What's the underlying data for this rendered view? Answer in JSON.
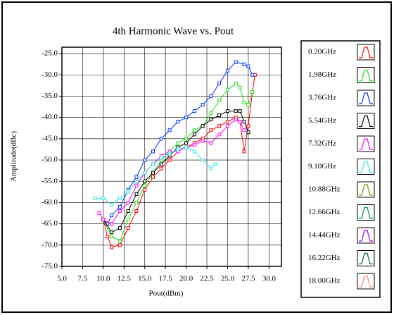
{
  "chart_data": {
    "type": "line",
    "title": "4th Harmonic Wave vs. Pout",
    "x_label": "Pout(dBm)",
    "y_label": "Amplitude(dBc)",
    "xlim": [
      5,
      31.5
    ],
    "ylim": [
      -75,
      -23.5
    ],
    "xticks": [
      {
        "value": 5,
        "label": "5.0"
      },
      {
        "value": 7.5,
        "label": "7.5"
      },
      {
        "value": 10,
        "label": "10.0"
      },
      {
        "value": 12.5,
        "label": "12.5"
      },
      {
        "value": 15,
        "label": "15.0"
      },
      {
        "value": 17.5,
        "label": "17.5"
      },
      {
        "value": 20,
        "label": "20.0"
      },
      {
        "value": 22.5,
        "label": "22.5"
      },
      {
        "value": 25,
        "label": "25.0"
      },
      {
        "value": 27.5,
        "label": "27.5"
      },
      {
        "value": 30,
        "label": "30.0"
      }
    ],
    "yticks": [
      {
        "value": -25,
        "label": "-25.0"
      },
      {
        "value": -30,
        "label": "-30.0"
      },
      {
        "value": -35,
        "label": "-35.0"
      },
      {
        "value": -40,
        "label": "-40.0"
      },
      {
        "value": -45,
        "label": "-45.0"
      },
      {
        "value": -50,
        "label": "-50.0"
      },
      {
        "value": -55,
        "label": "-55.0"
      },
      {
        "value": -60,
        "label": "-60.0"
      },
      {
        "value": -65,
        "label": "-65.0"
      },
      {
        "value": -70,
        "label": "-70.0"
      },
      {
        "value": -75,
        "label": "-75.0"
      }
    ],
    "grid": true,
    "series": [
      {
        "name": "0.20GHz",
        "color": "#ff0000",
        "x": [
          10,
          10.5,
          11,
          12,
          13,
          14,
          15,
          16,
          17,
          18,
          19,
          20,
          21,
          22,
          23,
          24,
          25,
          26,
          26.5,
          27,
          27.5,
          28,
          28.3
        ],
        "values": [
          -64,
          -68,
          -70.5,
          -70,
          -66,
          -62,
          -57,
          -54,
          -52,
          -50,
          -48,
          -47,
          -46,
          -45,
          -43,
          -42,
          -41,
          -40,
          -41,
          -48,
          -42,
          -34,
          -30
        ]
      },
      {
        "name": "1.98GHz",
        "color": "#22dd22",
        "x": [
          10,
          11,
          12,
          13,
          14,
          15,
          16,
          17,
          18,
          19,
          20,
          21,
          22,
          23,
          24,
          25,
          26,
          26.5,
          27,
          27.5,
          28
        ],
        "values": [
          -64,
          -68,
          -69,
          -64,
          -60,
          -56,
          -53,
          -50,
          -48,
          -46,
          -45,
          -43,
          -42,
          -39,
          -36,
          -33.5,
          -32,
          -33,
          -36.5,
          -37,
          -34
        ]
      },
      {
        "name": "3.76GHz",
        "color": "#0033ff",
        "x": [
          10,
          10.5,
          11,
          12,
          13,
          14,
          15,
          16,
          17,
          18,
          19,
          20,
          21,
          22,
          23,
          24,
          25,
          26,
          27,
          27.5,
          28
        ],
        "values": [
          -64,
          -65,
          -63,
          -61,
          -57,
          -54,
          -50,
          -48,
          -45,
          -43,
          -41,
          -40,
          -38.5,
          -37,
          -35,
          -32,
          -29,
          -27,
          -27.5,
          -28,
          -30
        ]
      },
      {
        "name": "5.54GHz",
        "color": "#000000",
        "x": [
          10,
          11,
          12,
          13,
          14,
          15,
          16,
          17,
          18,
          19,
          20,
          21,
          22,
          23,
          24,
          25,
          26,
          26.5,
          27,
          27.5
        ],
        "values": [
          -64,
          -67,
          -66,
          -62,
          -58,
          -55,
          -53,
          -51,
          -49,
          -47,
          -46,
          -44,
          -42,
          -40.5,
          -39.5,
          -38.5,
          -38.5,
          -38.5,
          -41,
          -43.5
        ]
      },
      {
        "name": "7.32GHz",
        "color": "#ff00ff",
        "x": [
          9.5,
          10,
          11,
          12,
          13,
          14,
          15,
          16,
          17,
          18,
          19,
          20,
          21,
          22,
          23,
          24,
          25,
          26,
          26.5,
          27
        ],
        "values": [
          -62.5,
          -64,
          -65,
          -62,
          -60,
          -56,
          -53,
          -51,
          -49,
          -48,
          -48,
          -47,
          -46.5,
          -45.5,
          -46,
          -44,
          -42,
          -40.5,
          -41,
          -43
        ]
      },
      {
        "name": "9.10GHz",
        "color": "#33e5e5",
        "x": [
          9,
          10,
          11,
          12,
          13,
          14,
          15,
          16,
          17,
          18,
          19,
          20,
          21,
          22,
          23,
          23.5
        ],
        "values": [
          -59,
          -59,
          -60.5,
          -59,
          -57.5,
          -55,
          -53,
          -51,
          -49.5,
          -48.5,
          -47.5,
          -47,
          -48,
          -50,
          -52,
          -51
        ]
      },
      {
        "name": "10.88GHz",
        "color": "#888800",
        "x": [],
        "values": []
      },
      {
        "name": "12.66GHz",
        "color": "#008866",
        "x": [],
        "values": []
      },
      {
        "name": "14.44GHz",
        "color": "#8800ff",
        "x": [],
        "values": []
      },
      {
        "name": "16.22GHz",
        "color": "#006633",
        "x": [],
        "values": []
      },
      {
        "name": "18.00GHz",
        "color": "#ff8888",
        "x": [],
        "values": []
      }
    ]
  }
}
